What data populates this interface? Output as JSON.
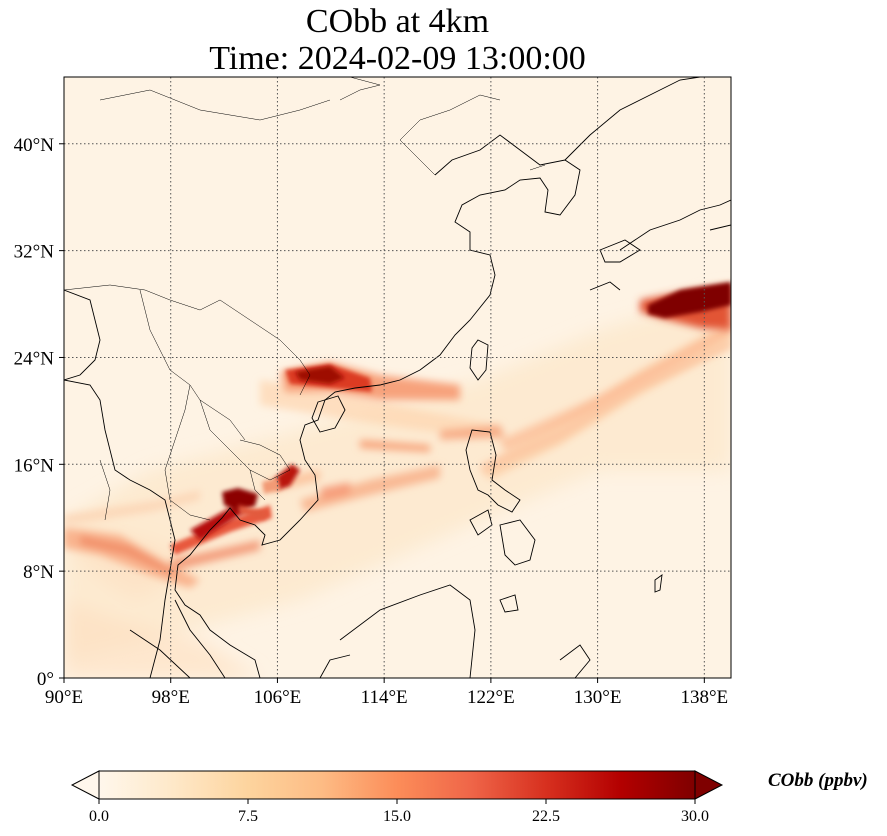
{
  "title": {
    "line1": "CObb at 4km",
    "line2": "Time: 2024-02-09 13:00:00"
  },
  "map": {
    "lon_range": [
      90,
      140
    ],
    "lat_range": [
      0,
      45
    ],
    "x_ticks": [
      {
        "value": 90,
        "label": "90°E"
      },
      {
        "value": 98,
        "label": "98°E"
      },
      {
        "value": 106,
        "label": "106°E"
      },
      {
        "value": 114,
        "label": "114°E"
      },
      {
        "value": 122,
        "label": "122°E"
      },
      {
        "value": 130,
        "label": "130°E"
      },
      {
        "value": 138,
        "label": "138°E"
      }
    ],
    "y_ticks": [
      {
        "value": 0,
        "label": "0°"
      },
      {
        "value": 8,
        "label": "8°N"
      },
      {
        "value": 16,
        "label": "16°N"
      },
      {
        "value": 24,
        "label": "24°N"
      },
      {
        "value": 32,
        "label": "32°N"
      },
      {
        "value": 40,
        "label": "40°N"
      }
    ],
    "gridlines": true,
    "features": [
      "coastlines",
      "country borders"
    ],
    "plumes": [
      {
        "region": "southern Japan offshore",
        "lon": [
          134,
          140
        ],
        "lat": [
          27,
          29.5
        ],
        "level": 30
      },
      {
        "region": "south China coast",
        "lon": [
          107.5,
          113
        ],
        "lat": [
          20.5,
          23.5
        ],
        "level": 25
      },
      {
        "region": "Cambodia",
        "lon": [
          101,
          105
        ],
        "lat": [
          10.5,
          14
        ],
        "level": 27
      },
      {
        "region": "Laos/Vietnam",
        "lon": [
          105,
          107
        ],
        "lat": [
          14.5,
          16
        ],
        "level": 24
      },
      {
        "region": "Bay of Bengal band",
        "lon": [
          90,
          100
        ],
        "lat": [
          8,
          11
        ],
        "level": 10
      },
      {
        "region": "South China Sea band",
        "lon": [
          106,
          140
        ],
        "lat": [
          14,
          26
        ],
        "level": 6
      }
    ]
  },
  "colorbar": {
    "title": "CObb (ppbv)",
    "min": 0,
    "max": 30,
    "ticks": [
      {
        "value": 0,
        "label": "0.0"
      },
      {
        "value": 7.5,
        "label": "7.5"
      },
      {
        "value": 15,
        "label": "15.0"
      },
      {
        "value": 22.5,
        "label": "22.5"
      },
      {
        "value": 30,
        "label": "30.0"
      }
    ],
    "colormap": "OrRd",
    "colors": [
      "#fff7ec",
      "#fee8c8",
      "#fdd49e",
      "#fdbb84",
      "#fc8d59",
      "#ef6548",
      "#d7301f",
      "#b30000",
      "#7f0000"
    ]
  }
}
